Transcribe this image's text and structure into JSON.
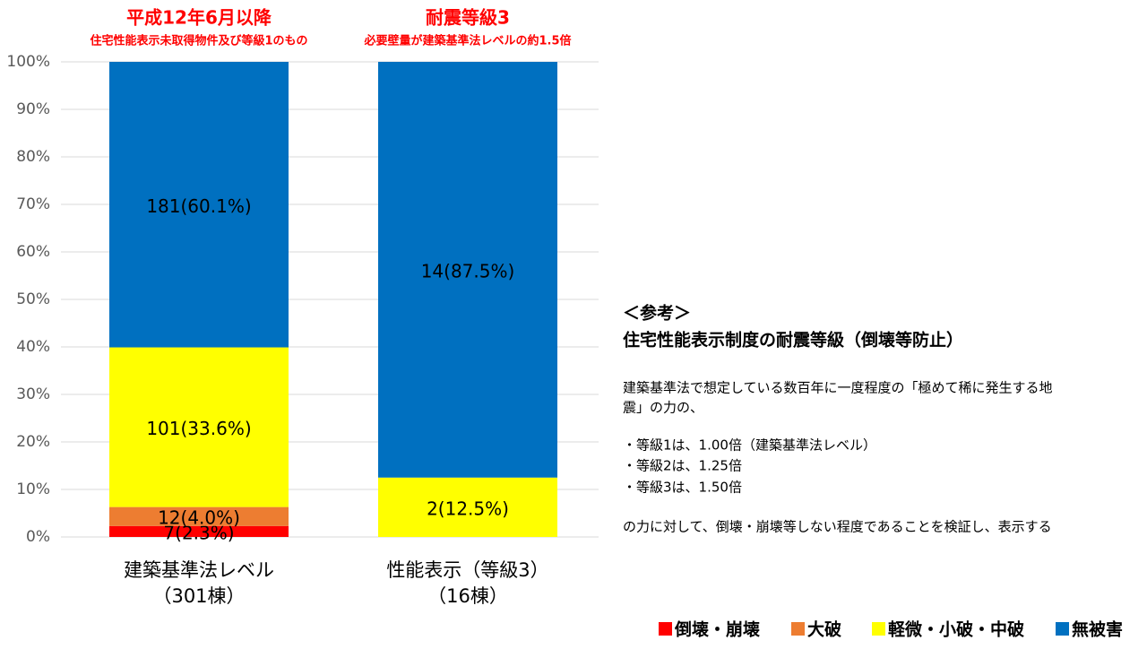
{
  "chart_data": {
    "type": "stacked_bar",
    "categories": [
      [
        "建築基準法レベル",
        "（301棟）"
      ],
      [
        "性能表示（等級3）",
        "（16棟）"
      ]
    ],
    "category_headers": [
      {
        "title": "平成12年6月以降",
        "subtitle": "住宅性能表示未取得物件及び等級1のもの"
      },
      {
        "title": "耐震等級3",
        "subtitle": "必要壁量が建築基準法レベルの約1.5倍"
      }
    ],
    "series": [
      {
        "name": "倒壊・崩壊",
        "color": "#ff0000",
        "values": [
          2.3,
          0
        ],
        "value_labels": [
          "7(2.3%)",
          null
        ]
      },
      {
        "name": "大破",
        "color": "#ed7d31",
        "values": [
          4.0,
          0
        ],
        "value_labels": [
          "12(4.0%)",
          null
        ]
      },
      {
        "name": "軽微・小破・中破",
        "color": "#ffff00",
        "values": [
          33.6,
          12.5
        ],
        "value_labels": [
          "101(33.6%)",
          "2(12.5%)"
        ]
      },
      {
        "name": "無被害",
        "color": "#0070c0",
        "values": [
          60.1,
          87.5
        ],
        "value_labels": [
          "181(60.1%)",
          "14(87.5%)"
        ]
      }
    ],
    "ylim": [
      0,
      100
    ],
    "yticks": [
      {
        "value": 0,
        "label": "0%"
      },
      {
        "value": 10,
        "label": "10%"
      },
      {
        "value": 20,
        "label": "20%"
      },
      {
        "value": 30,
        "label": "30%"
      },
      {
        "value": 40,
        "label": "40%"
      },
      {
        "value": 50,
        "label": "50%"
      },
      {
        "value": 60,
        "label": "60%"
      },
      {
        "value": 70,
        "label": "70%"
      },
      {
        "value": 80,
        "label": "80%"
      },
      {
        "value": 90,
        "label": "90%"
      },
      {
        "value": 100,
        "label": "100%"
      }
    ],
    "grid": true,
    "legend": "bottom-right",
    "annotations": [
      "＜参考＞",
      "住宅性能表示制度の耐震等級（倒壊等防止）",
      "建築基準法で想定している数百年に一度程度の「極めて稀に発生する地",
      "震」の力の、",
      "・等級1は、1.00倍（建築基準法レベル）",
      "・等級2は、1.25倍",
      "・等級3は、1.50倍",
      "の力に対して、倒壊・崩壊等しない程度であることを検証し、表示する"
    ]
  }
}
